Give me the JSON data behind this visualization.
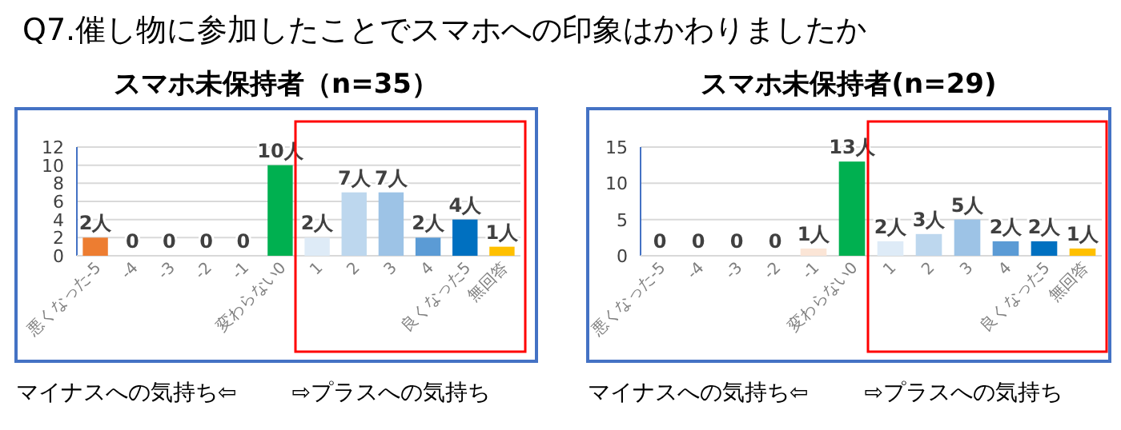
{
  "chart_data": [
    {
      "type": "bar",
      "title": "スマホ未保持者（n=35）",
      "annotations": [
        "Q7.催し物に参加したことでスマホへの印象はかわりましたか",
        "マイナスへの気持ち⇦",
        "⇨プラスへの気持ち"
      ],
      "categories": [
        "悪くなった-5",
        "-4",
        "-3",
        "-2",
        "-1",
        "変わらない0",
        "1",
        "2",
        "3",
        "4",
        "良くなった5",
        "無回答"
      ],
      "values": [
        2,
        0,
        0,
        0,
        0,
        10,
        2,
        7,
        7,
        2,
        4,
        1
      ],
      "colors": [
        "#ed7d31",
        "#f4b183",
        "#f8cbad",
        "#fbe5d6",
        "#fbe5d6",
        "#00b050",
        "#deebf7",
        "#bdd7ee",
        "#9dc3e6",
        "#5b9bd5",
        "#0070c0",
        "#ffc000"
      ],
      "value_labels": [
        "2人",
        "0",
        "0",
        "0",
        "0",
        "10人",
        "2人",
        "7人",
        "7人",
        "2人",
        "4人",
        "1人"
      ],
      "ylim": [
        0,
        12
      ],
      "yticks": [
        0,
        2,
        4,
        6,
        8,
        10,
        12
      ],
      "grid": "y"
    },
    {
      "type": "bar",
      "title": "スマホ未保持者(n=29)",
      "annotations": [
        "マイナスへの気持ち⇦",
        "⇨プラスへの気持ち"
      ],
      "categories": [
        "悪くなった-5",
        "-4",
        "-3",
        "-2",
        "-1",
        "変わらない0",
        "1",
        "2",
        "3",
        "4",
        "良くなった5",
        "無回答"
      ],
      "values": [
        0,
        0,
        0,
        0,
        1,
        13,
        2,
        3,
        5,
        2,
        2,
        1
      ],
      "colors": [
        "#ed7d31",
        "#f4b183",
        "#f8cbad",
        "#fbe5d6",
        "#fbe5d6",
        "#00b050",
        "#deebf7",
        "#bdd7ee",
        "#9dc3e6",
        "#5b9bd5",
        "#0070c0",
        "#ffc000"
      ],
      "value_labels": [
        "0",
        "0",
        "0",
        "0",
        "1人",
        "13人",
        "2人",
        "3人",
        "5人",
        "2人",
        "2人",
        "1人"
      ],
      "ylim": [
        0,
        15
      ],
      "yticks": [
        0,
        5,
        10,
        15
      ],
      "grid": "y"
    }
  ]
}
